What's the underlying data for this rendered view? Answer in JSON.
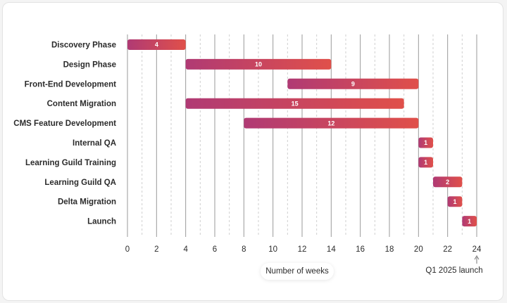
{
  "chart_data": {
    "type": "bar",
    "orientation": "horizontal-gantt",
    "title": "",
    "xlabel": "Number of weeks",
    "ylabel": "",
    "xlim": [
      0,
      24
    ],
    "x_ticks": [
      0,
      2,
      4,
      6,
      8,
      10,
      12,
      14,
      16,
      18,
      20,
      22,
      24
    ],
    "grid": true,
    "tasks": [
      {
        "name": "Discovery Phase",
        "start": 0,
        "duration": 4
      },
      {
        "name": "Design Phase",
        "start": 4,
        "duration": 10
      },
      {
        "name": "Front-End Development",
        "start": 11,
        "duration": 9
      },
      {
        "name": "Content Migration",
        "start": 4,
        "duration": 15
      },
      {
        "name": "CMS Feature Development",
        "start": 8,
        "duration": 12
      },
      {
        "name": "Internal QA",
        "start": 20,
        "duration": 1
      },
      {
        "name": "Learning Guild Training",
        "start": 20,
        "duration": 1
      },
      {
        "name": "Learning Guild QA",
        "start": 21,
        "duration": 2
      },
      {
        "name": "Delta Migration",
        "start": 22,
        "duration": 1
      },
      {
        "name": "Launch",
        "start": 23,
        "duration": 1
      }
    ],
    "annotation": {
      "x": 24,
      "text": "Q1 2025 launch"
    },
    "colors": {
      "bar_start": "#b03a74",
      "bar_end": "#e0504a",
      "grid_major": "#9a9a9a",
      "grid_minor": "#cfcfcf"
    }
  }
}
